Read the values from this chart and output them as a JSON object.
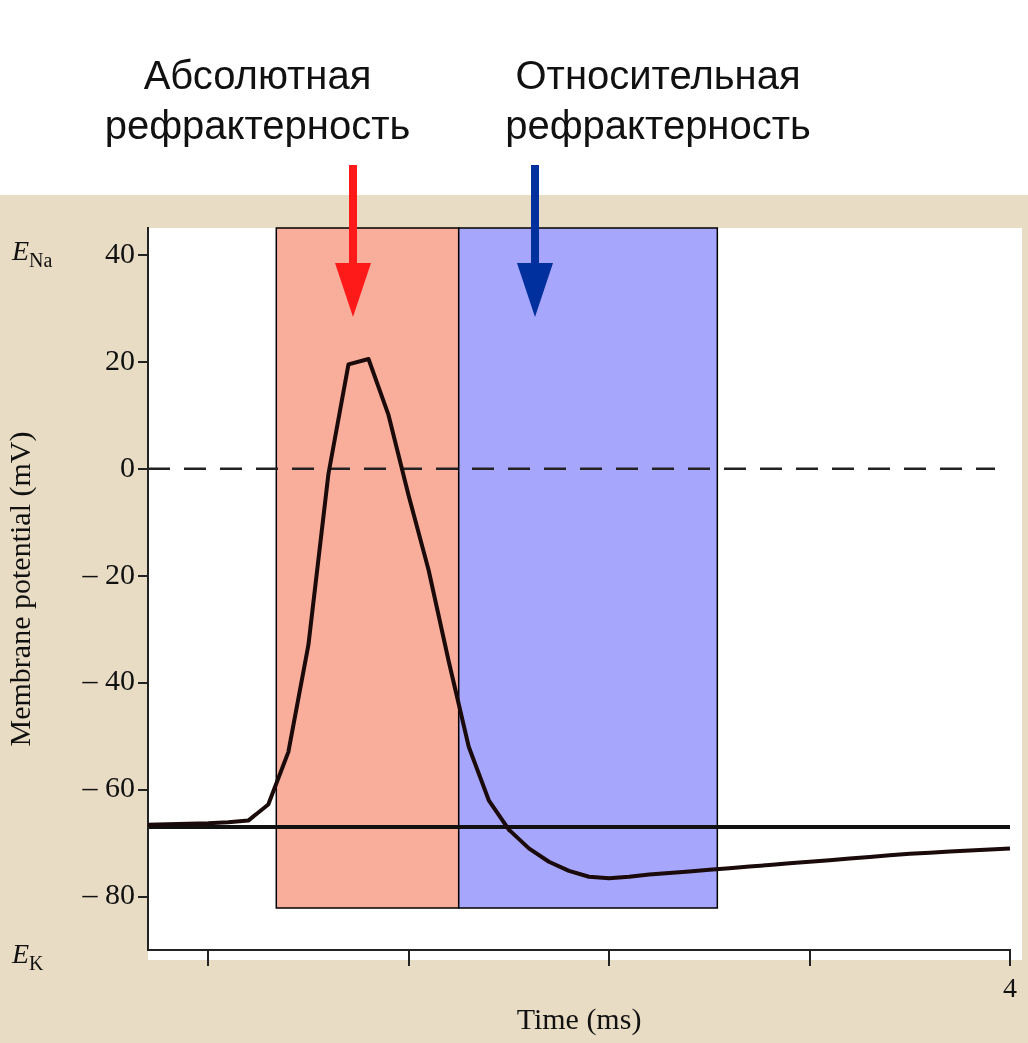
{
  "chart_data": {
    "type": "line",
    "xlabel": "Time (ms)",
    "ylabel": "Membrane potential (mV)",
    "categories": [
      null,
      null,
      null,
      null,
      null,
      null,
      null,
      null,
      null,
      null,
      null,
      null,
      null,
      null,
      null,
      null,
      null,
      null,
      null,
      null,
      null,
      null,
      null,
      null,
      null,
      null,
      null,
      null,
      null,
      null,
      null,
      null,
      null,
      null,
      null,
      null,
      null,
      null,
      null,
      null,
      null,
      null,
      null,
      null
    ],
    "series": [
      {
        "color": "#1a0a0a",
        "values": [
          -66.6,
          -66.5,
          -66.4,
          -66.3,
          -66.1,
          -65.8,
          -62.8,
          -53,
          -33,
          -1,
          19.5,
          20.5,
          10,
          -5,
          -19,
          -36,
          -52,
          -62,
          -67.5,
          -71,
          -73.5,
          -75.2,
          -76.3,
          -76.6,
          -76.3,
          -75.9,
          -75.6,
          -75.3,
          -75,
          -74.7,
          -74.4,
          -74.1,
          -73.8,
          -73.5,
          -73.2,
          -72.9,
          -72.6,
          -72.3,
          -72,
          -71.8,
          -71.6,
          -71.4,
          -71.2,
          -71
        ]
      }
    ],
    "ylim": [
      -90,
      45
    ],
    "yticks": [
      {
        "value": -80,
        "label": "– 80"
      },
      {
        "value": -60,
        "label": "– 60"
      },
      {
        "value": -40,
        "label": "– 40"
      },
      {
        "value": -20,
        "label": "– 20"
      },
      {
        "value": 0,
        "label": "0"
      },
      {
        "value": 20,
        "label": "20"
      },
      {
        "value": 40,
        "label": "40"
      }
    ],
    "ref_lines": [
      {
        "axis": "y",
        "value": 0,
        "line_style": "dashed",
        "color": "#222222"
      },
      {
        "axis": "y",
        "value": -67,
        "line_style": "solid",
        "color": "#111111"
      }
    ],
    "annotations": [
      "E$_{Na}$",
      "E$_{K}$",
      "4",
      "Абсолютная рефрактерность",
      "Относительная рефрактерность"
    ],
    "grid": false,
    "legend": false,
    "marker": "none",
    "line_style": "solid"
  }
}
